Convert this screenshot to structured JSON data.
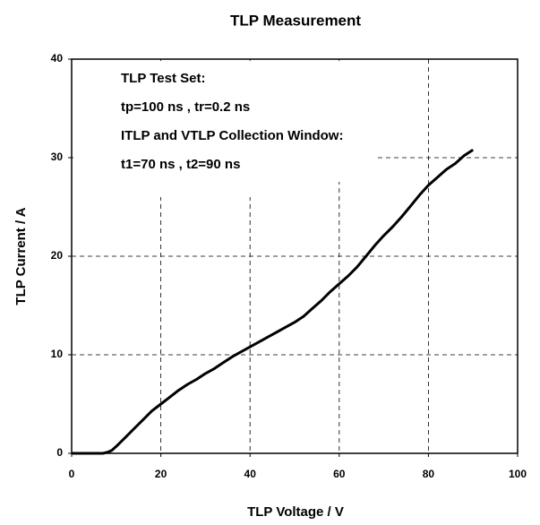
{
  "chart_data": {
    "type": "line",
    "title": "TLP Measurement",
    "xlabel": "TLP Voltage / V",
    "ylabel": "TLP Current / A",
    "annotations": [
      "TLP Test Set:",
      "tp=100 ns , tr=0.2 ns",
      "ITLP and VTLP Collection Window:",
      "t1=70 ns , t2=90 ns"
    ],
    "x": [
      0,
      7,
      8,
      9,
      10,
      12,
      14,
      16,
      18,
      20,
      22,
      24,
      26,
      28,
      30,
      32,
      34,
      36,
      38,
      40,
      42,
      44,
      46,
      48,
      50,
      52,
      54,
      56,
      58,
      60,
      62,
      64,
      66,
      68,
      70,
      72,
      74,
      76,
      78,
      80,
      82,
      84,
      86,
      88,
      90
    ],
    "series": [
      {
        "name": "TLP",
        "color": "#000000",
        "values": [
          0,
          0,
          0.1,
          0.3,
          0.7,
          1.6,
          2.5,
          3.4,
          4.3,
          5.0,
          5.7,
          6.4,
          7.0,
          7.5,
          8.1,
          8.6,
          9.2,
          9.8,
          10.3,
          10.8,
          11.3,
          11.8,
          12.3,
          12.8,
          13.3,
          13.9,
          14.7,
          15.5,
          16.4,
          17.2,
          18.0,
          18.9,
          20.0,
          21.1,
          22.1,
          23.0,
          24.0,
          25.1,
          26.2,
          27.2,
          28.0,
          28.8,
          29.4,
          30.2,
          30.8
        ]
      }
    ],
    "xlim": [
      0,
      100
    ],
    "xticks": [
      0,
      20,
      40,
      60,
      80,
      100
    ],
    "ylim": [
      0,
      40
    ],
    "yticks": [
      0,
      10,
      20,
      30,
      40
    ],
    "grid": true
  }
}
